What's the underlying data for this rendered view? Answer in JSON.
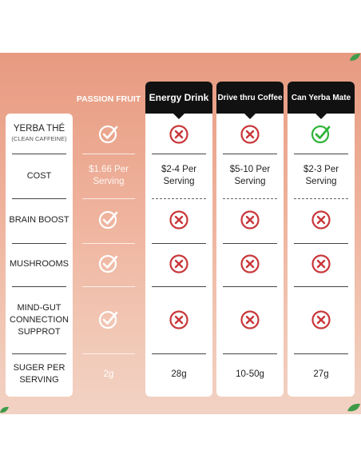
{
  "colors": {
    "background": "#eaa58c",
    "header_bg": "#111111",
    "check_white": "#ffffff",
    "check_green": "#2fb43a",
    "cross_red": "#c8373a",
    "text_dark": "#222222"
  },
  "rows": {
    "yerba_the_title": "YERBA THÉ",
    "yerba_the_sub": "(CLEAN CAFFEINE)",
    "cost": "COST",
    "brain_boost": "BRAIN BOOST",
    "mushrooms": "MUSHROOMS",
    "mind_gut": "MIND-GUT CONNECTION SUPPROT",
    "sugar": "SUGER PER SERVING"
  },
  "columns": {
    "passion_fruit": {
      "header": "PASSION FRUIT",
      "cost": "$1.66 Per Serving",
      "sugar": "2g",
      "icons": [
        "check-white",
        "check-white",
        "check-white",
        "check-white"
      ]
    },
    "energy_drink": {
      "header": "Energy Drink",
      "cost": "$2-4 Per Serving",
      "sugar": "28g",
      "icons": [
        "cross-red",
        "cross-red",
        "cross-red",
        "cross-red"
      ]
    },
    "drive_thru_coffee": {
      "header": "Drive thru Coffee",
      "cost": "$5-10 Per Serving",
      "sugar": "10-50g",
      "icons": [
        "cross-red",
        "cross-red",
        "cross-red",
        "cross-red"
      ]
    },
    "can_yerba_mate": {
      "header": "Can Yerba Mate",
      "cost": "$2-3 Per Serving",
      "sugar": "27g",
      "icons": [
        "check-green",
        "cross-red",
        "cross-red",
        "cross-red"
      ]
    }
  }
}
